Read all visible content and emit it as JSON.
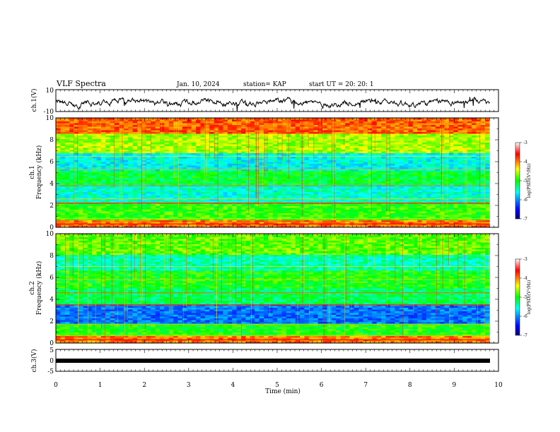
{
  "header": {
    "title": "VLF Spectra",
    "date": "Jan. 10, 2024",
    "station": "station= KAP",
    "start_ut": "start  UT =  20: 20: 1"
  },
  "chart_data": [
    {
      "type": "line",
      "panel": "ch1-waveform",
      "ylabel": "ch.1(V)",
      "ylim": [
        -10,
        10
      ],
      "ytick_labels": [
        "10",
        "-10"
      ],
      "xlim": [
        0,
        10
      ],
      "color": "#000000"
    },
    {
      "type": "heatmap",
      "panel": "ch1-spectrogram",
      "ylabel": "ch.1\nFrequency (kHz)",
      "ylabel_line1": "ch.1",
      "ylabel_line2": "Frequency (kHz)",
      "ylim": [
        0,
        10
      ],
      "ytick_labels": [
        "0",
        "2",
        "4",
        "6",
        "8",
        "10"
      ],
      "xlim": [
        0,
        9.8
      ],
      "colorbar": {
        "range": [
          -7,
          -3
        ],
        "tick_labels": [
          "-3",
          "-4",
          "-5",
          "-6",
          "-7"
        ],
        "label": "log(PSD)(V²/Hz)"
      }
    },
    {
      "type": "heatmap",
      "panel": "ch2-spectrogram",
      "ylabel_line1": "ch.2",
      "ylabel_line2": "Frequency (kHz)",
      "ylim": [
        0,
        10
      ],
      "ytick_labels": [
        "0",
        "2",
        "4",
        "6",
        "8",
        "10"
      ],
      "xlim": [
        0,
        9.8
      ],
      "colorbar": {
        "range": [
          -7,
          -3
        ],
        "tick_labels": [
          "-3",
          "-4",
          "-5",
          "-6",
          "-7"
        ],
        "label": "log(PSD)(V²/Hz)"
      }
    },
    {
      "type": "line",
      "panel": "ch3-waveform",
      "ylabel": "ch.3(V)",
      "ylim": [
        -5,
        5
      ],
      "ytick_labels": [
        "5",
        "0",
        "-5"
      ],
      "xlim": [
        0,
        10
      ],
      "color": "#000000"
    }
  ],
  "x_axis": {
    "label": "Time (min)",
    "range": [
      0,
      10
    ],
    "tick_labels": [
      "0",
      "1",
      "2",
      "3",
      "4",
      "5",
      "6",
      "7",
      "8",
      "9",
      "10"
    ]
  },
  "colormap": [
    "#00007f",
    "#0000ff",
    "#00ffff",
    "#00ff00",
    "#ffff00",
    "#ff0000",
    "#ffffff"
  ]
}
